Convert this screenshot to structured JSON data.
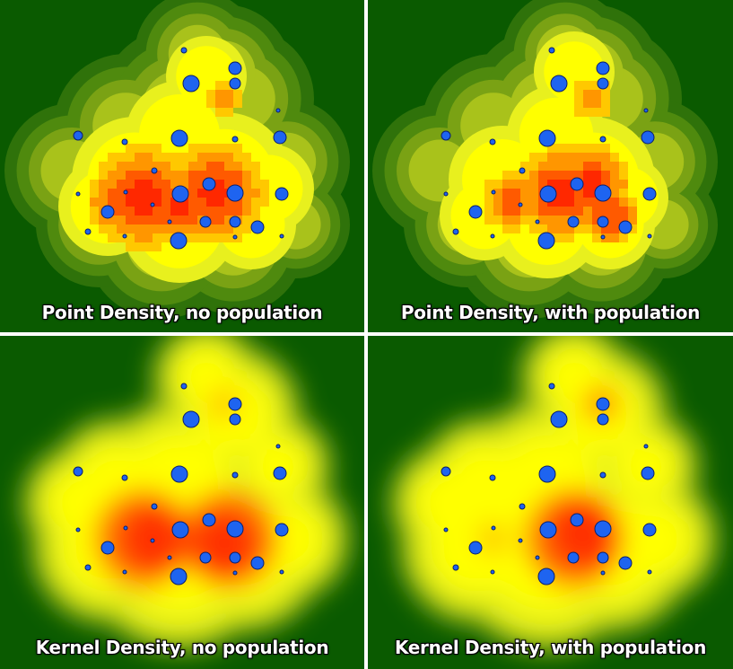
{
  "panels": [
    {
      "id": "point-no-pop",
      "caption": "Point Density, no population"
    },
    {
      "id": "point-with-pop",
      "caption": "Point Density, with population"
    },
    {
      "id": "kernel-no-pop",
      "caption": "Kernel Density, no population"
    },
    {
      "id": "kernel-with-pop",
      "caption": "Kernel Density, with population"
    }
  ],
  "colors": {
    "background": "#0a5a00",
    "divider": "#ffffff",
    "point_fill": "#1e64f0",
    "point_stroke": "#0a1e6e",
    "density_ramp": [
      "#0a5a00",
      "#3c7a0a",
      "#789a14",
      "#b4c81e",
      "#e6f01e",
      "#ffff00",
      "#ffc800",
      "#ff8c00",
      "#ff3c00",
      "#ff1e00"
    ]
  },
  "icons": {
    "point": "circle-point-icon"
  }
}
